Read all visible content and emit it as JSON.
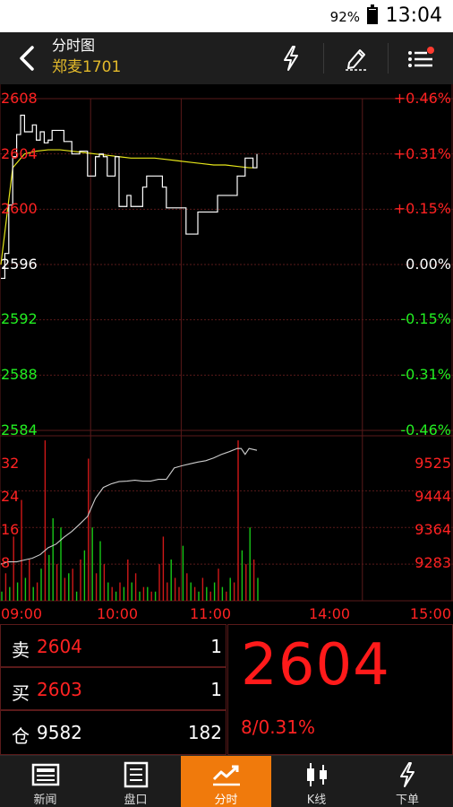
{
  "status_bar": {
    "battery": "92%",
    "battery_level": 0.92,
    "time": "13:04"
  },
  "header": {
    "title": "分时图",
    "symbol": "郑麦1701",
    "icons": [
      "back-icon",
      "lightning-icon",
      "pencil-icon",
      "menu-icon"
    ],
    "notification_dot_color": "#ff3b30"
  },
  "chart_data": {
    "type": "line",
    "title": "",
    "x_ticks": [
      "09:00",
      "10:00",
      "11:00",
      "14:00",
      "15:00"
    ],
    "price_axis": {
      "ylim": [
        2584,
        2608
      ],
      "left_ticks": [
        "2608",
        "2604",
        "2600",
        "2596",
        "2592",
        "2588",
        "2584"
      ],
      "right_ticks": [
        "+0.46%",
        "+0.31%",
        "+0.15%",
        "0.00%",
        "-0.15%",
        "-0.31%",
        "-0.46%"
      ],
      "reference": 2596
    },
    "volume_axis": {
      "ylim": [
        0,
        36
      ],
      "left_ticks": [
        "32",
        "24",
        "16",
        "8"
      ],
      "right_ticks": [
        "9525",
        "9444",
        "9364",
        "9283"
      ],
      "oi_range": [
        9202,
        9566
      ]
    },
    "series": [
      {
        "name": "",
        "color": "#ffffff",
        "points": [
          [
            0,
            2595.0
          ],
          [
            1,
            2596.8
          ],
          [
            2,
            2600.3
          ],
          [
            3,
            2603.8
          ],
          [
            4,
            2605.4
          ],
          [
            5,
            2606.8
          ],
          [
            6,
            2605.6
          ],
          [
            7,
            2605.6
          ],
          [
            8,
            2606.1
          ],
          [
            9,
            2605.0
          ],
          [
            10,
            2605.6
          ],
          [
            11,
            2604.8
          ],
          [
            12,
            2605.0
          ],
          [
            13,
            2605.7
          ],
          [
            14,
            2605.7
          ],
          [
            15,
            2605.7
          ],
          [
            16,
            2604.9
          ],
          [
            17,
            2604.9
          ],
          [
            18,
            2604.0
          ],
          [
            19,
            2604.0
          ],
          [
            20,
            2604.2
          ],
          [
            21,
            2604.2
          ],
          [
            22,
            2602.4
          ],
          [
            23,
            2602.4
          ],
          [
            24,
            2603.8
          ],
          [
            25,
            2604.0
          ],
          [
            26,
            2603.8
          ],
          [
            27,
            2602.4
          ],
          [
            28,
            2602.4
          ],
          [
            29,
            2603.8
          ],
          [
            30,
            2600.2
          ],
          [
            31,
            2600.2
          ],
          [
            32,
            2601.0
          ],
          [
            33,
            2600.2
          ],
          [
            34,
            2600.2
          ],
          [
            35,
            2600.2
          ],
          [
            36,
            2601.6
          ],
          [
            37,
            2602.4
          ],
          [
            38,
            2602.4
          ],
          [
            39,
            2602.4
          ],
          [
            40,
            2602.4
          ],
          [
            41,
            2601.6
          ],
          [
            42,
            2600.1
          ],
          [
            43,
            2600.1
          ],
          [
            44,
            2600.1
          ],
          [
            45,
            2600.1
          ],
          [
            46,
            2600.1
          ],
          [
            47,
            2598.2
          ],
          [
            48,
            2598.2
          ],
          [
            49,
            2598.2
          ],
          [
            50,
            2599.8
          ],
          [
            51,
            2599.8
          ],
          [
            52,
            2599.8
          ],
          [
            53,
            2599.8
          ],
          [
            54,
            2599.8
          ],
          [
            55,
            2601.0
          ],
          [
            56,
            2601.0
          ],
          [
            57,
            2601.0
          ],
          [
            58,
            2601.0
          ],
          [
            59,
            2601.0
          ],
          [
            60,
            2602.4
          ],
          [
            61,
            2602.4
          ],
          [
            62,
            2603.7
          ],
          [
            63,
            2603.7
          ],
          [
            64,
            2603.0
          ],
          [
            65,
            2604.0
          ]
        ]
      },
      {
        "name": "",
        "color": "#e6e61a",
        "points": [
          [
            0,
            2596.0
          ],
          [
            3,
            2603.0
          ],
          [
            6,
            2604.0
          ],
          [
            9,
            2604.2
          ],
          [
            12,
            2604.3
          ],
          [
            15,
            2604.3
          ],
          [
            18,
            2604.2
          ],
          [
            21,
            2604.1
          ],
          [
            24,
            2604.0
          ],
          [
            27,
            2603.9
          ],
          [
            30,
            2603.8
          ],
          [
            33,
            2603.7
          ],
          [
            36,
            2603.7
          ],
          [
            39,
            2603.7
          ],
          [
            42,
            2603.6
          ],
          [
            45,
            2603.5
          ],
          [
            48,
            2603.4
          ],
          [
            51,
            2603.3
          ],
          [
            54,
            2603.2
          ],
          [
            57,
            2603.2
          ],
          [
            60,
            2603.1
          ],
          [
            63,
            2603.0
          ],
          [
            65,
            2603.0
          ]
        ]
      },
      {
        "name": "",
        "color": "#cccccc",
        "points": [
          [
            0,
            9283
          ],
          [
            2,
            9288
          ],
          [
            4,
            9288
          ],
          [
            6,
            9292
          ],
          [
            8,
            9296
          ],
          [
            10,
            9304
          ],
          [
            12,
            9319
          ],
          [
            14,
            9327
          ],
          [
            16,
            9342
          ],
          [
            18,
            9355
          ],
          [
            20,
            9371
          ],
          [
            22,
            9388
          ],
          [
            24,
            9428
          ],
          [
            26,
            9452
          ],
          [
            28,
            9460
          ],
          [
            30,
            9465
          ],
          [
            32,
            9466
          ],
          [
            34,
            9468
          ],
          [
            36,
            9466
          ],
          [
            38,
            9466
          ],
          [
            40,
            9470
          ],
          [
            42,
            9470
          ],
          [
            44,
            9495
          ],
          [
            46,
            9500
          ],
          [
            48,
            9504
          ],
          [
            50,
            9508
          ],
          [
            52,
            9511
          ],
          [
            54,
            9517
          ],
          [
            56,
            9525
          ],
          [
            58,
            9531
          ],
          [
            60,
            9538
          ],
          [
            61,
            9538
          ],
          [
            62,
            9525
          ],
          [
            63,
            9538
          ],
          [
            65,
            9534
          ]
        ]
      }
    ],
    "volume_bars": [
      [
        0,
        2,
        "g"
      ],
      [
        1,
        6,
        "r"
      ],
      [
        2,
        3,
        "g"
      ],
      [
        3,
        14,
        "r"
      ],
      [
        4,
        4,
        "g"
      ],
      [
        5,
        22,
        "r"
      ],
      [
        6,
        5,
        "g"
      ],
      [
        7,
        9,
        "r"
      ],
      [
        8,
        3,
        "g"
      ],
      [
        9,
        4,
        "r"
      ],
      [
        10,
        7,
        "g"
      ],
      [
        11,
        35,
        "r"
      ],
      [
        12,
        10,
        "g"
      ],
      [
        13,
        18,
        "g"
      ],
      [
        14,
        8,
        "r"
      ],
      [
        15,
        16,
        "g"
      ],
      [
        16,
        5,
        "r"
      ],
      [
        17,
        6,
        "g"
      ],
      [
        18,
        7,
        "r"
      ],
      [
        19,
        2,
        "g"
      ],
      [
        20,
        9,
        "r"
      ],
      [
        21,
        11,
        "g"
      ],
      [
        22,
        31,
        "r"
      ],
      [
        23,
        16,
        "g"
      ],
      [
        24,
        6,
        "r"
      ],
      [
        25,
        13,
        "g"
      ],
      [
        26,
        8,
        "r"
      ],
      [
        27,
        4,
        "g"
      ],
      [
        28,
        3,
        "r"
      ],
      [
        29,
        2,
        "g"
      ],
      [
        30,
        4,
        "r"
      ],
      [
        31,
        3,
        "g"
      ],
      [
        32,
        9,
        "r"
      ],
      [
        33,
        4,
        "g"
      ],
      [
        34,
        6,
        "r"
      ],
      [
        35,
        2,
        "g"
      ],
      [
        36,
        3,
        "r"
      ],
      [
        37,
        3,
        "g"
      ],
      [
        38,
        2,
        "r"
      ],
      [
        39,
        2,
        "g"
      ],
      [
        40,
        8,
        "r"
      ],
      [
        41,
        14,
        "r"
      ],
      [
        42,
        4,
        "r"
      ],
      [
        43,
        9,
        "g"
      ],
      [
        44,
        5,
        "r"
      ],
      [
        45,
        3,
        "r"
      ],
      [
        46,
        12,
        "g"
      ],
      [
        47,
        6,
        "r"
      ],
      [
        48,
        4,
        "g"
      ],
      [
        49,
        3,
        "r"
      ],
      [
        50,
        2,
        "g"
      ],
      [
        51,
        5,
        "r"
      ],
      [
        52,
        3,
        "g"
      ],
      [
        53,
        2,
        "r"
      ],
      [
        54,
        4,
        "g"
      ],
      [
        55,
        7,
        "r"
      ],
      [
        56,
        3,
        "g"
      ],
      [
        57,
        2,
        "r"
      ],
      [
        58,
        5,
        "g"
      ],
      [
        59,
        4,
        "r"
      ],
      [
        60,
        35,
        "r"
      ],
      [
        61,
        11,
        "g"
      ],
      [
        62,
        8,
        "r"
      ],
      [
        63,
        16,
        "g"
      ],
      [
        64,
        9,
        "r"
      ],
      [
        65,
        5,
        "g"
      ]
    ],
    "session_marks": [
      0,
      60,
      120,
      240,
      300
    ]
  },
  "quote": {
    "sell_label": "卖",
    "sell_price": "2604",
    "sell_qty": "1",
    "buy_label": "买",
    "buy_price": "2603",
    "buy_qty": "1",
    "oi_label": "仓",
    "oi_value": "9582",
    "oi_change": "182",
    "last_price": "2604",
    "change": "8/0.31%"
  },
  "tabs": [
    {
      "label": "新闻",
      "icon": "news-icon",
      "active": false
    },
    {
      "label": "盘口",
      "icon": "orderbook-icon",
      "active": false
    },
    {
      "label": "分时",
      "icon": "timeshare-icon",
      "active": true
    },
    {
      "label": "K线",
      "icon": "candlestick-icon",
      "active": false
    },
    {
      "label": "下单",
      "icon": "order-icon",
      "active": false
    }
  ],
  "colors": {
    "up": "#ff2222",
    "down": "#22ee22",
    "flat": "#ffffff",
    "accent": "#f07a0c",
    "symbol": "#e2b92b",
    "grid": "#5a1a1a"
  }
}
